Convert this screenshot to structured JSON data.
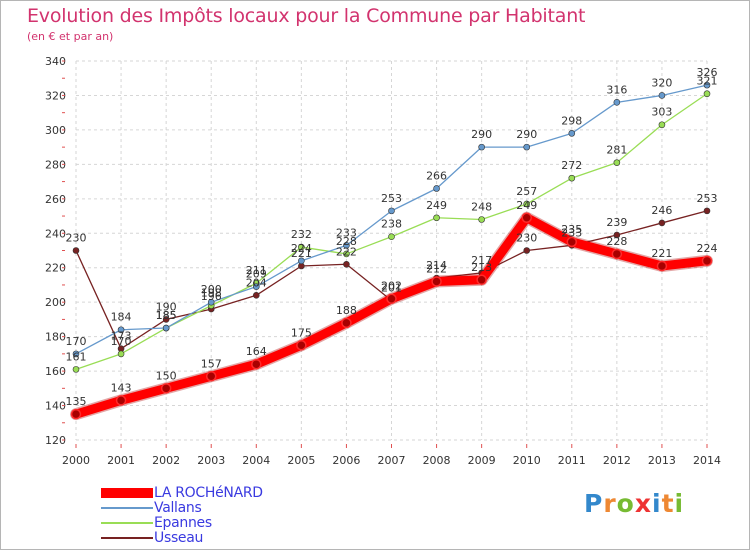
{
  "header": {
    "title": "Evolution des Impôts locaux pour la Commune par Habitant",
    "subtitle": "(en € et par an)"
  },
  "logo": {
    "text": "Proxiti",
    "letters": [
      "P",
      "r",
      "o",
      "x",
      "i",
      "t",
      "i"
    ]
  },
  "chart_data": {
    "type": "line",
    "x": [
      "2000",
      "2001",
      "2002",
      "2003",
      "2004",
      "2005",
      "2006",
      "2007",
      "2008",
      "2009",
      "2010",
      "2011",
      "2012",
      "2013",
      "2014"
    ],
    "ylim": [
      120,
      340
    ],
    "yticks": [
      120,
      140,
      160,
      180,
      200,
      220,
      240,
      260,
      280,
      300,
      320,
      340
    ],
    "grid": true,
    "legend_position": "bottom-left",
    "series": [
      {
        "name": "LA ROCHéNARD",
        "color": "#ff0000",
        "values": [
          135,
          143,
          150,
          157,
          164,
          175,
          188,
          202,
          212,
          213,
          249,
          235,
          228,
          221,
          224
        ],
        "labels": [
          "135",
          "143",
          "150",
          "157",
          "164",
          "175",
          "188",
          "202",
          "212",
          "213",
          "249",
          "235",
          "228",
          "221",
          "224"
        ]
      },
      {
        "name": "Vallans",
        "color": "#6699cc",
        "values": [
          170,
          184,
          185,
          200,
          209,
          224,
          233,
          253,
          266,
          290,
          290,
          298,
          316,
          320,
          326
        ],
        "labels": [
          "170",
          "184",
          "185",
          "200",
          "209",
          "224",
          "233",
          "253",
          "266",
          "290",
          "290",
          "298",
          "316",
          "320",
          "326"
        ]
      },
      {
        "name": "Epannes",
        "color": "#99dd55",
        "values": [
          161,
          170,
          185,
          198,
          211,
          232,
          228,
          238,
          249,
          248,
          257,
          272,
          281,
          303,
          321
        ],
        "labels": [
          "161",
          "170",
          "185",
          "198",
          "211",
          "232",
          "228",
          "238",
          "249",
          "248",
          "257",
          "272",
          "281",
          "303",
          "321"
        ]
      },
      {
        "name": "Usseau",
        "color": "#772222",
        "values": [
          230,
          173,
          190,
          196,
          204,
          221,
          222,
          201,
          214,
          217,
          230,
          233,
          239,
          246,
          253
        ],
        "labels": [
          "230",
          "173",
          "190",
          "196",
          "204",
          "221",
          "222",
          "201",
          "214",
          "217",
          "230",
          "233",
          "239",
          "246",
          "253"
        ]
      }
    ]
  }
}
